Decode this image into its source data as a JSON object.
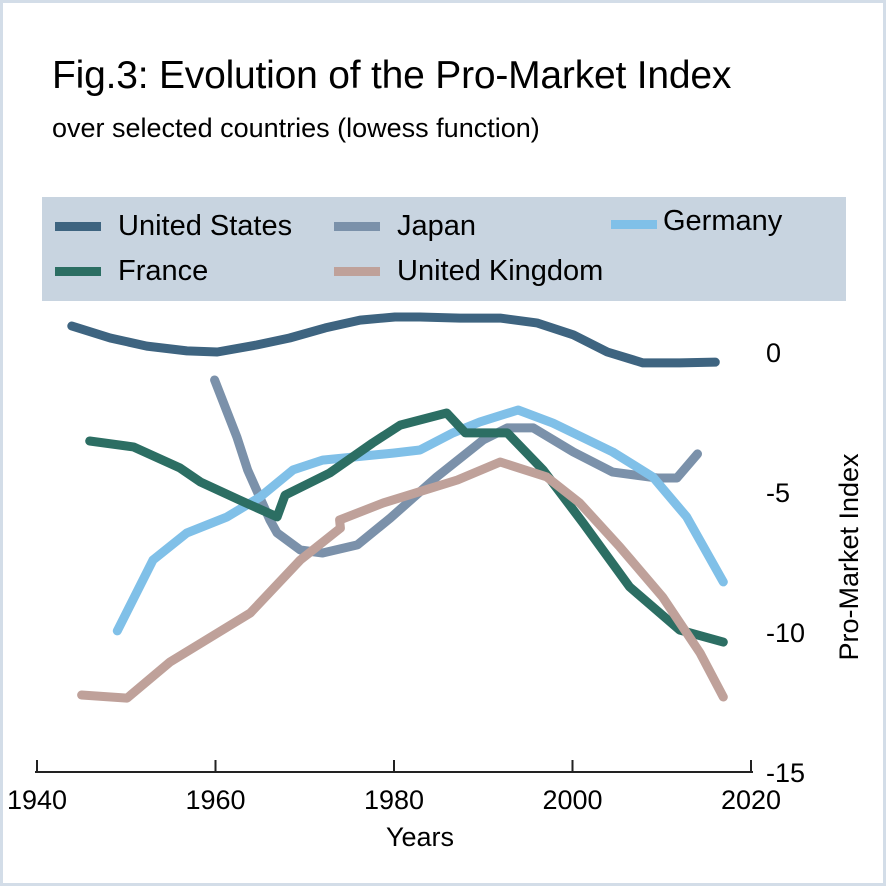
{
  "chart_data": {
    "type": "line",
    "title": "Fig.3: Evolution of the Pro-Market Index",
    "subtitle": "over selected countries (lowess function)",
    "xlabel": "Years",
    "ylabel": "Pro-Market Index",
    "xlim": [
      1940,
      2020
    ],
    "ylim": [
      -15,
      0
    ],
    "xticks": [
      1940,
      1960,
      1980,
      2000,
      2020
    ],
    "xtick_labels": [
      "1940",
      "1960",
      "1980",
      "2000",
      "2020"
    ],
    "yticks": [
      0,
      -5,
      -10,
      -15
    ],
    "ytick_labels": [
      "0",
      "-5",
      "-10",
      "-15"
    ],
    "y_axis_side": "right",
    "grid": false,
    "legend_position": "top",
    "series": [
      {
        "name": "United States",
        "color": "#3e6480",
        "x": [
          1943.9,
          1948.2,
          1952.3,
          1956.8,
          1960.2,
          1964.6,
          1968.3,
          1972.3,
          1976.2,
          1980.1,
          1982.9,
          1987.4,
          1991.9,
          1996.0,
          2000.1,
          2003.9,
          2007.9,
          2012.0,
          2016.0
        ],
        "y": [
          0.93,
          0.5,
          0.21,
          0.04,
          0.0,
          0.25,
          0.5,
          0.86,
          1.14,
          1.25,
          1.25,
          1.21,
          1.21,
          1.04,
          0.61,
          0.0,
          -0.39,
          -0.39,
          -0.36
        ]
      },
      {
        "name": "Japan",
        "color": "#7b91aa",
        "x": [
          1959.9,
          1962.4,
          1963.6,
          1966.1,
          1966.9,
          1969.5,
          1972.0,
          1975.9,
          1979.6,
          1984.8,
          1990.0,
          1992.7,
          1995.6,
          2000.1,
          2004.5,
          2009.5,
          2011.7,
          2014.0
        ],
        "y": [
          -1.0,
          -3.04,
          -4.21,
          -6.0,
          -6.46,
          -7.07,
          -7.18,
          -6.89,
          -5.93,
          -4.46,
          -3.14,
          -2.71,
          -2.71,
          -3.57,
          -4.29,
          -4.5,
          -4.5,
          -3.64
        ]
      },
      {
        "name": "Germany",
        "color": "#80c0e8",
        "x": [
          1949.0,
          1953.0,
          1956.8,
          1961.3,
          1965.0,
          1968.7,
          1972.0,
          1979.9,
          1982.9,
          1986.6,
          1989.6,
          1993.9,
          1997.8,
          2004.5,
          2009.0,
          2012.8,
          2016.9
        ],
        "y": [
          -9.96,
          -7.43,
          -6.46,
          -5.89,
          -5.18,
          -4.21,
          -3.86,
          -3.61,
          -3.5,
          -2.89,
          -2.5,
          -2.07,
          -2.54,
          -3.57,
          -4.46,
          -5.89,
          -8.21
        ]
      },
      {
        "name": "France",
        "color": "#2c6e63",
        "x": [
          1945.9,
          1950.8,
          1956.0,
          1958.3,
          1962.7,
          1966.9,
          1967.8,
          1972.8,
          1977.6,
          1980.7,
          1985.9,
          1988.0,
          1992.7,
          1996.7,
          2001.2,
          2006.4,
          2012.0,
          2016.9
        ],
        "y": [
          -3.18,
          -3.39,
          -4.14,
          -4.64,
          -5.29,
          -5.89,
          -5.11,
          -4.32,
          -3.25,
          -2.61,
          -2.18,
          -2.89,
          -2.89,
          -4.21,
          -6.11,
          -8.39,
          -9.93,
          -10.36
        ]
      },
      {
        "name": "United Kingdom",
        "color": "#bfa19a",
        "x": [
          1945.0,
          1950.1,
          1954.9,
          1963.9,
          1969.5,
          1974.0,
          1973.9,
          1978.8,
          1987.1,
          1991.9,
          1997.1,
          2000.8,
          2005.3,
          2010.1,
          2014.3,
          2016.9
        ],
        "y": [
          -12.25,
          -12.36,
          -11.07,
          -9.32,
          -7.43,
          -6.29,
          -6.0,
          -5.39,
          -4.57,
          -3.93,
          -4.46,
          -5.39,
          -6.96,
          -8.75,
          -10.75,
          -12.32
        ]
      }
    ]
  },
  "legend": {
    "items": [
      {
        "label": "United States",
        "color": "#3e6480"
      },
      {
        "label": "Japan",
        "color": "#7b91aa"
      },
      {
        "label": "Germany",
        "color": "#80c0e8"
      },
      {
        "label": "France",
        "color": "#2c6e63"
      },
      {
        "label": "United Kingdom",
        "color": "#bfa19a"
      }
    ]
  },
  "colors": {
    "legend_background": "#c8d4e0",
    "frame": "#d3dde8"
  }
}
